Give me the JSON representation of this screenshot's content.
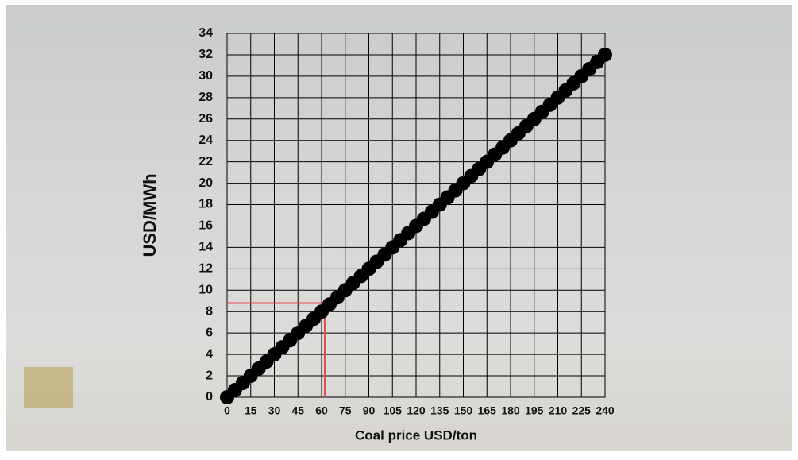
{
  "chart_data": {
    "type": "scatter",
    "x_label": "Coal price USD/ton",
    "y_label": "USD/MWh",
    "x": [
      0,
      5,
      10,
      15,
      20,
      25,
      30,
      35,
      40,
      45,
      50,
      55,
      60,
      65,
      70,
      75,
      80,
      85,
      90,
      95,
      100,
      105,
      110,
      115,
      120,
      125,
      130,
      135,
      140,
      145,
      150,
      155,
      160,
      165,
      170,
      175,
      180,
      185,
      190,
      195,
      200,
      205,
      210,
      215,
      220,
      225,
      230,
      235,
      240
    ],
    "series": [
      {
        "color": "#000000",
        "values": [
          0,
          0.67,
          1.33,
          2,
          2.67,
          3.33,
          4,
          4.67,
          5.33,
          6,
          6.67,
          7.33,
          8,
          8.67,
          9.33,
          10,
          10.67,
          11.33,
          12,
          12.67,
          13.33,
          14,
          14.67,
          15.33,
          16,
          16.67,
          17.33,
          18,
          18.67,
          19.33,
          20,
          20.67,
          21.33,
          22,
          22.67,
          23.33,
          24,
          24.67,
          25.33,
          26,
          26.67,
          27.33,
          28,
          28.67,
          29.33,
          30,
          30.67,
          31.33,
          32
        ]
      }
    ],
    "xlim": [
      0,
      240
    ],
    "xticks": [
      0,
      15,
      30,
      45,
      60,
      75,
      90,
      105,
      120,
      135,
      150,
      165,
      180,
      195,
      210,
      225,
      240
    ],
    "ylim": [
      0,
      34
    ],
    "yticks": [
      0,
      2,
      4,
      6,
      8,
      10,
      12,
      14,
      16,
      18,
      20,
      22,
      24,
      26,
      28,
      30,
      32,
      34
    ],
    "grid": true,
    "highlight": {
      "x": 62,
      "y": 8.8,
      "color": "#e05050"
    }
  }
}
